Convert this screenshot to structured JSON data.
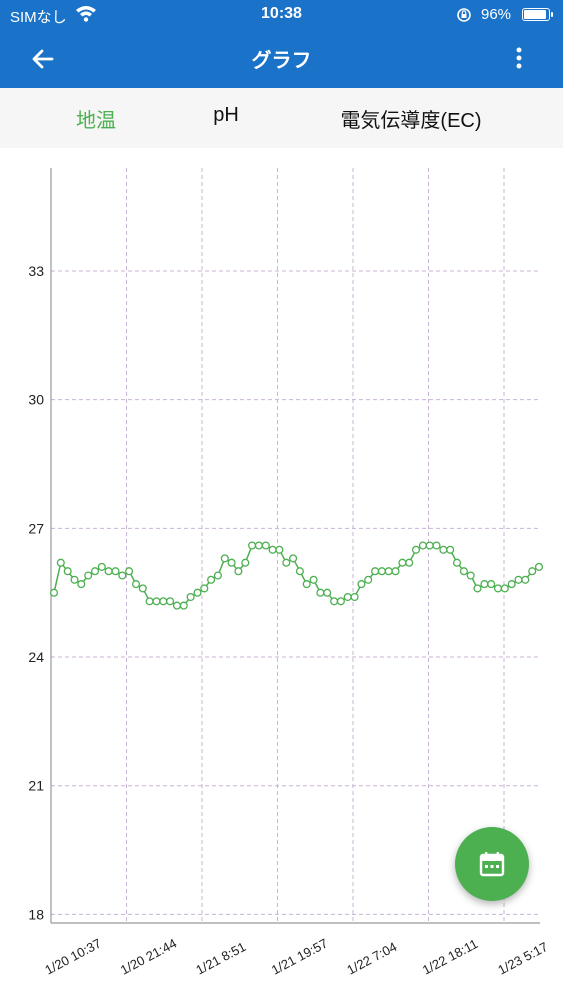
{
  "status_bar": {
    "carrier": "SIMなし",
    "time": "10:38",
    "battery": "96%",
    "battery_level": 0.96
  },
  "app_bar": {
    "title": "グラフ",
    "back_icon": "arrow-left-icon",
    "menu_icon": "more-vertical-icon"
  },
  "tabs": [
    {
      "label": "地温",
      "active": true
    },
    {
      "label": "pH",
      "active": false
    },
    {
      "label": "電気伝導度(EC)",
      "active": false
    }
  ],
  "colors": {
    "app_bar": "#1a73c9",
    "accent": "#4caf50",
    "grid": "#c8b4d6"
  },
  "fab": {
    "icon": "calendar-icon"
  },
  "chart_data": {
    "type": "line",
    "ylim": [
      17.8,
      35.4
    ],
    "yticks": [
      18,
      21,
      24,
      27,
      30,
      33
    ],
    "xtick_labels": [
      "1/20 10:37",
      "1/20 21:44",
      "1/21 8:51",
      "1/21 19:57",
      "1/22 7:04",
      "1/22 18:11",
      "1/23 5:17"
    ],
    "grid": true,
    "legend": "none",
    "series": [
      {
        "values": [
          25.5,
          26.2,
          26.0,
          25.8,
          25.7,
          25.9,
          26.0,
          26.1,
          26.0,
          26.0,
          25.9,
          26.0,
          25.7,
          25.6,
          25.3,
          25.3,
          25.3,
          25.3,
          25.2,
          25.2,
          25.4,
          25.5,
          25.6,
          25.8,
          25.9,
          26.3,
          26.2,
          26.0,
          26.2,
          26.6,
          26.6,
          26.6,
          26.5,
          26.5,
          26.2,
          26.3,
          26.0,
          25.7,
          25.8,
          25.5,
          25.5,
          25.3,
          25.3,
          25.4,
          25.4,
          25.7,
          25.8,
          26.0,
          26.0,
          26.0,
          26.0,
          26.2,
          26.2,
          26.5,
          26.6,
          26.6,
          26.6,
          26.5,
          26.5,
          26.2,
          26.0,
          25.9,
          25.6,
          25.7,
          25.7,
          25.6,
          25.6,
          25.7,
          25.8,
          25.8,
          26.0,
          26.1
        ]
      }
    ]
  }
}
